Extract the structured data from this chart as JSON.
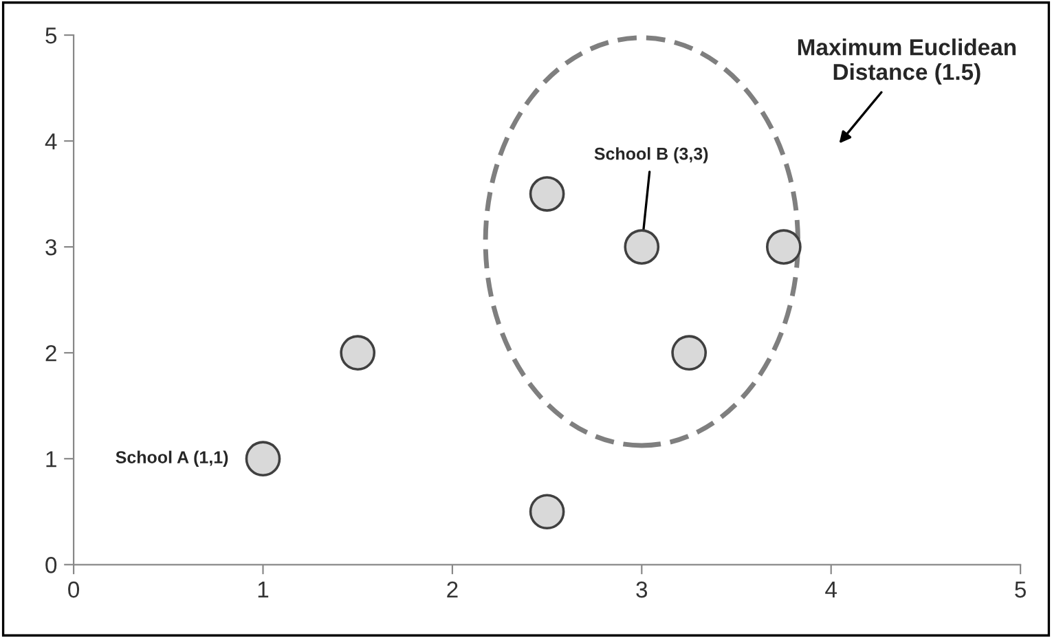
{
  "chart_data": {
    "type": "scatter",
    "x": [
      1,
      1.5,
      2.5,
      2.5,
      3,
      3.25,
      3.75
    ],
    "values": [
      1,
      2,
      3.5,
      0.5,
      3,
      2,
      3
    ],
    "color": "#d9d9d9",
    "marker": "circle",
    "grid": false,
    "xlim": [
      0,
      5
    ],
    "ylim": [
      0,
      5
    ],
    "xticks": [
      0,
      1,
      2,
      3,
      4,
      5
    ],
    "yticks": [
      0,
      1,
      2,
      3,
      4,
      5
    ],
    "annotations": [
      {
        "text": "School A (1,1)",
        "x": 1,
        "y": 1
      },
      {
        "text": "School B (3,3)",
        "x": 3,
        "y": 3
      },
      "Maximum Euclidean Distance (1.5)"
    ]
  }
}
